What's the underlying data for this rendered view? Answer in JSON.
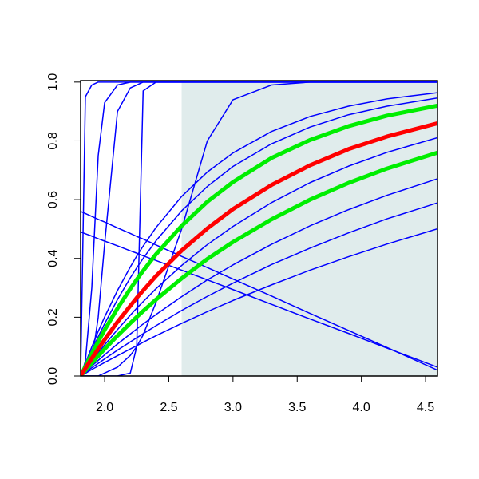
{
  "chart_data": {
    "type": "line",
    "x": [
      1.813,
      1.85,
      1.9,
      1.95,
      2.0,
      2.1,
      2.2,
      2.25,
      2.3,
      2.4,
      2.6,
      2.8,
      3.0,
      3.3,
      3.6,
      3.9,
      4.2,
      4.593
    ],
    "xlim": [
      1.813,
      4.593
    ],
    "ylim": [
      0,
      1.005
    ],
    "xticks": [
      {
        "value": 2.0,
        "label": "2.0"
      },
      2.5,
      {
        "value": 3.0,
        "label": "3.0"
      },
      3.5,
      {
        "value": 4.0,
        "label": "4.0"
      },
      4.5
    ],
    "yticks": [
      {
        "value": 0,
        "label": "0.0"
      },
      0.2,
      0.4,
      0.6,
      0.8,
      {
        "value": 1,
        "label": "1.0"
      }
    ],
    "shade": {
      "xlim": [
        2.6,
        4.593
      ],
      "color": "#e0ecec"
    },
    "series": [
      {
        "color": "#0000ff",
        "width": 1.5,
        "values": [
          0,
          0.043,
          0.099,
          0.152,
          0.201,
          0.291,
          0.371,
          0.408,
          0.442,
          0.505,
          0.611,
          0.694,
          0.759,
          0.832,
          0.883,
          0.918,
          0.943,
          0.964
        ]
      },
      {
        "color": "#0000ff",
        "width": 1.5,
        "values": [
          0,
          0.015,
          0.034,
          0.053,
          0.072,
          0.109,
          0.143,
          0.16,
          0.177,
          0.209,
          0.27,
          0.327,
          0.378,
          0.448,
          0.511,
          0.566,
          0.615,
          0.671
        ]
      },
      {
        "color": "#0000ff",
        "width": 1.5,
        "values": [
          0,
          0.009,
          0.022,
          0.034,
          0.046,
          0.069,
          0.092,
          0.103,
          0.115,
          0.137,
          0.179,
          0.219,
          0.257,
          0.31,
          0.36,
          0.406,
          0.449,
          0.501
        ]
      },
      {
        "color": "#0000ff",
        "width": 1.5,
        "values": [
          0,
          0.012,
          0.028,
          0.043,
          0.058,
          0.088,
          0.116,
          0.13,
          0.144,
          0.171,
          0.223,
          0.271,
          0.316,
          0.379,
          0.435,
          0.487,
          0.535,
          0.589
        ]
      },
      {
        "color": "#0000ff",
        "width": 1.5,
        "values": [
          0,
          0.022,
          0.051,
          0.079,
          0.106,
          0.158,
          0.207,
          0.231,
          0.253,
          0.297,
          0.376,
          0.447,
          0.509,
          0.59,
          0.658,
          0.714,
          0.761,
          0.811
        ]
      },
      {
        "color": "#0000ff",
        "width": 1.5,
        "values": [
          0,
          0.038,
          0.087,
          0.134,
          0.178,
          0.26,
          0.334,
          0.368,
          0.4,
          0.46,
          0.562,
          0.645,
          0.713,
          0.79,
          0.847,
          0.889,
          0.918,
          0.946
        ]
      },
      {
        "color": "#0000ff",
        "width": 1.5,
        "values": [
          0,
          0.95,
          0.99,
          1,
          1,
          1,
          1,
          1,
          1,
          1,
          1,
          1,
          1,
          1,
          1,
          1,
          1,
          1
        ]
      },
      {
        "color": "#0000ff",
        "width": 1.5,
        "values": [
          0,
          0.05,
          0.3,
          0.75,
          0.93,
          0.99,
          1,
          1,
          1,
          1,
          1,
          1,
          1,
          1,
          1,
          1,
          1,
          1
        ]
      },
      {
        "color": "#0000ff",
        "width": 1.5,
        "values": [
          0,
          0.01,
          0.05,
          0.2,
          0.45,
          0.9,
          0.98,
          0.99,
          1,
          1,
          1,
          1,
          1,
          1,
          1,
          1,
          1,
          1
        ]
      },
      {
        "color": "#0000ff",
        "width": 1.5,
        "values": [
          0,
          0,
          0,
          0,
          0,
          0,
          0.01,
          0.1,
          0.97,
          1,
          1,
          1,
          1,
          1,
          1,
          1,
          1,
          1
        ]
      },
      {
        "color": "#0000ff",
        "width": 1.5,
        "values": [
          0,
          0,
          0,
          0,
          0.01,
          0.03,
          0.07,
          0.1,
          0.14,
          0.25,
          0.5,
          0.8,
          0.94,
          0.99,
          1,
          1,
          1,
          1
        ]
      },
      {
        "color": "#0000ff",
        "width": 1.5,
        "values": [
          0.56,
          0.553,
          0.543,
          0.533,
          0.524,
          0.504,
          0.485,
          0.475,
          0.466,
          0.446,
          0.407,
          0.369,
          0.33,
          0.272,
          0.213,
          0.155,
          0.097,
          0.02
        ]
      },
      {
        "color": "#0000ff",
        "width": 1.5,
        "values": [
          0.49,
          0.484,
          0.476,
          0.467,
          0.459,
          0.443,
          0.426,
          0.418,
          0.409,
          0.393,
          0.36,
          0.327,
          0.294,
          0.244,
          0.194,
          0.145,
          0.095,
          0.03
        ]
      },
      {
        "color": "#00ee00",
        "width": 5,
        "values": [
          0,
          0.033,
          0.076,
          0.117,
          0.157,
          0.23,
          0.297,
          0.328,
          0.358,
          0.414,
          0.511,
          0.593,
          0.66,
          0.742,
          0.803,
          0.85,
          0.886,
          0.92
        ]
      },
      {
        "color": "#00ee00",
        "width": 5,
        "values": [
          0,
          0.019,
          0.044,
          0.068,
          0.092,
          0.137,
          0.18,
          0.201,
          0.221,
          0.26,
          0.332,
          0.398,
          0.456,
          0.533,
          0.6,
          0.657,
          0.706,
          0.76
        ]
      },
      {
        "color": "#ff0000",
        "width": 5,
        "values": [
          0,
          0.026,
          0.06,
          0.092,
          0.124,
          0.184,
          0.239,
          0.266,
          0.291,
          0.34,
          0.427,
          0.502,
          0.568,
          0.65,
          0.717,
          0.772,
          0.815,
          0.86
        ]
      }
    ]
  }
}
